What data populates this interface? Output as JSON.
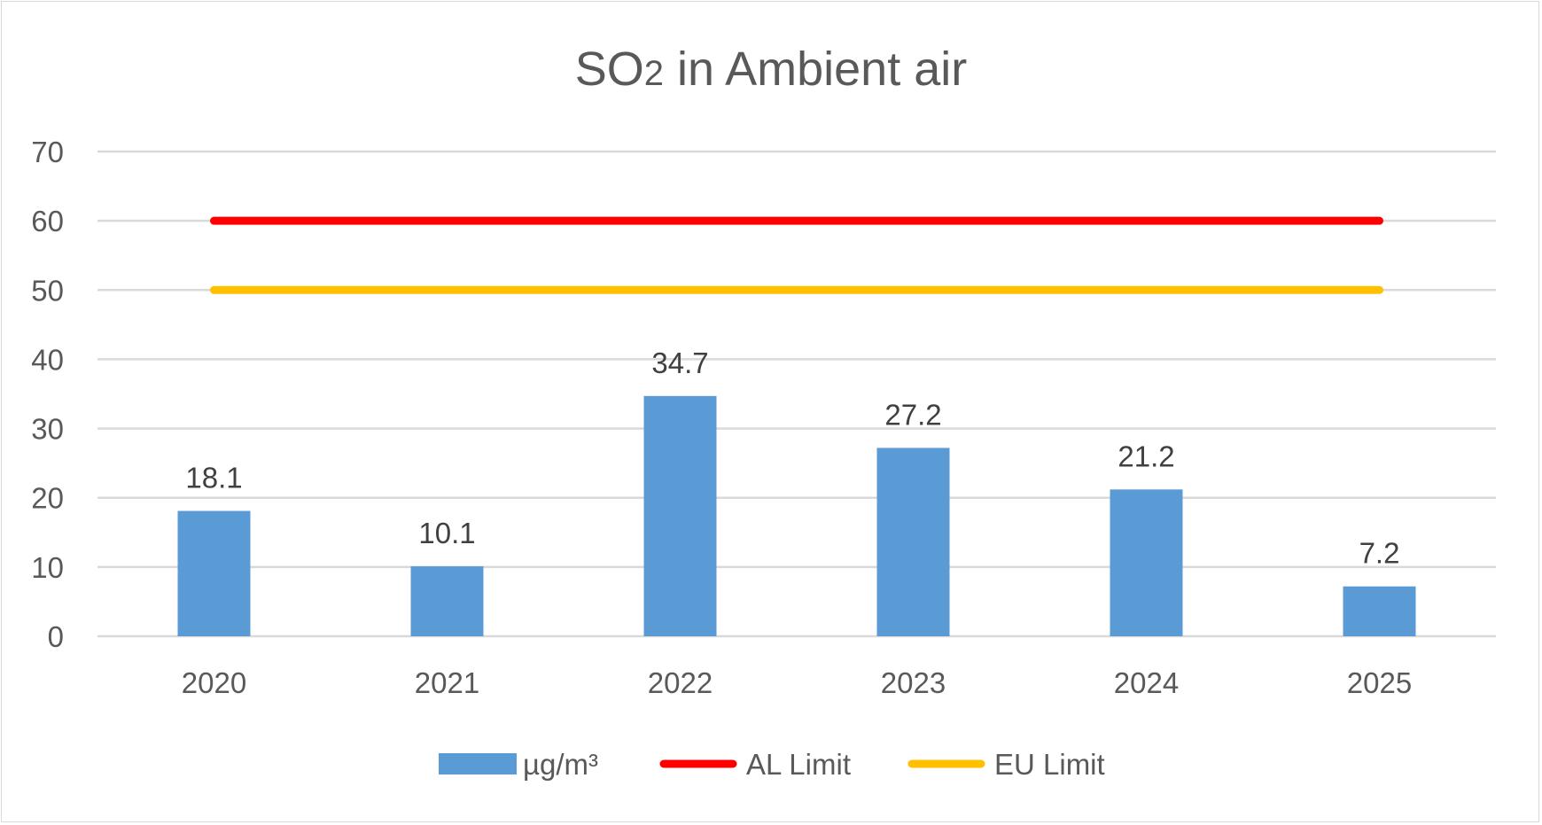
{
  "chart_data": {
    "type": "bar",
    "title": "SO2 in Ambient air",
    "categories": [
      "2020",
      "2021",
      "2022",
      "2023",
      "2024",
      "2025"
    ],
    "series": [
      {
        "name": "µg/m³",
        "kind": "bar",
        "color": "#5b9bd5",
        "values": [
          18.1,
          10.1,
          34.7,
          27.2,
          21.2,
          7.2
        ]
      },
      {
        "name": "AL Limit",
        "kind": "line",
        "color": "#ff0000",
        "values": [
          60,
          60,
          60,
          60,
          60,
          60
        ]
      },
      {
        "name": "EU Limit",
        "kind": "line",
        "color": "#ffc000",
        "values": [
          50,
          50,
          50,
          50,
          50,
          50
        ]
      }
    ],
    "data_labels": [
      "18.1",
      "10.1",
      "34.7",
      "27.2",
      "21.2",
      "7.2"
    ],
    "y_ticks": [
      "0",
      "10",
      "20",
      "30",
      "40",
      "50",
      "60",
      "70"
    ],
    "ylim": [
      0,
      70
    ],
    "grid": true,
    "legend_position": "bottom"
  }
}
